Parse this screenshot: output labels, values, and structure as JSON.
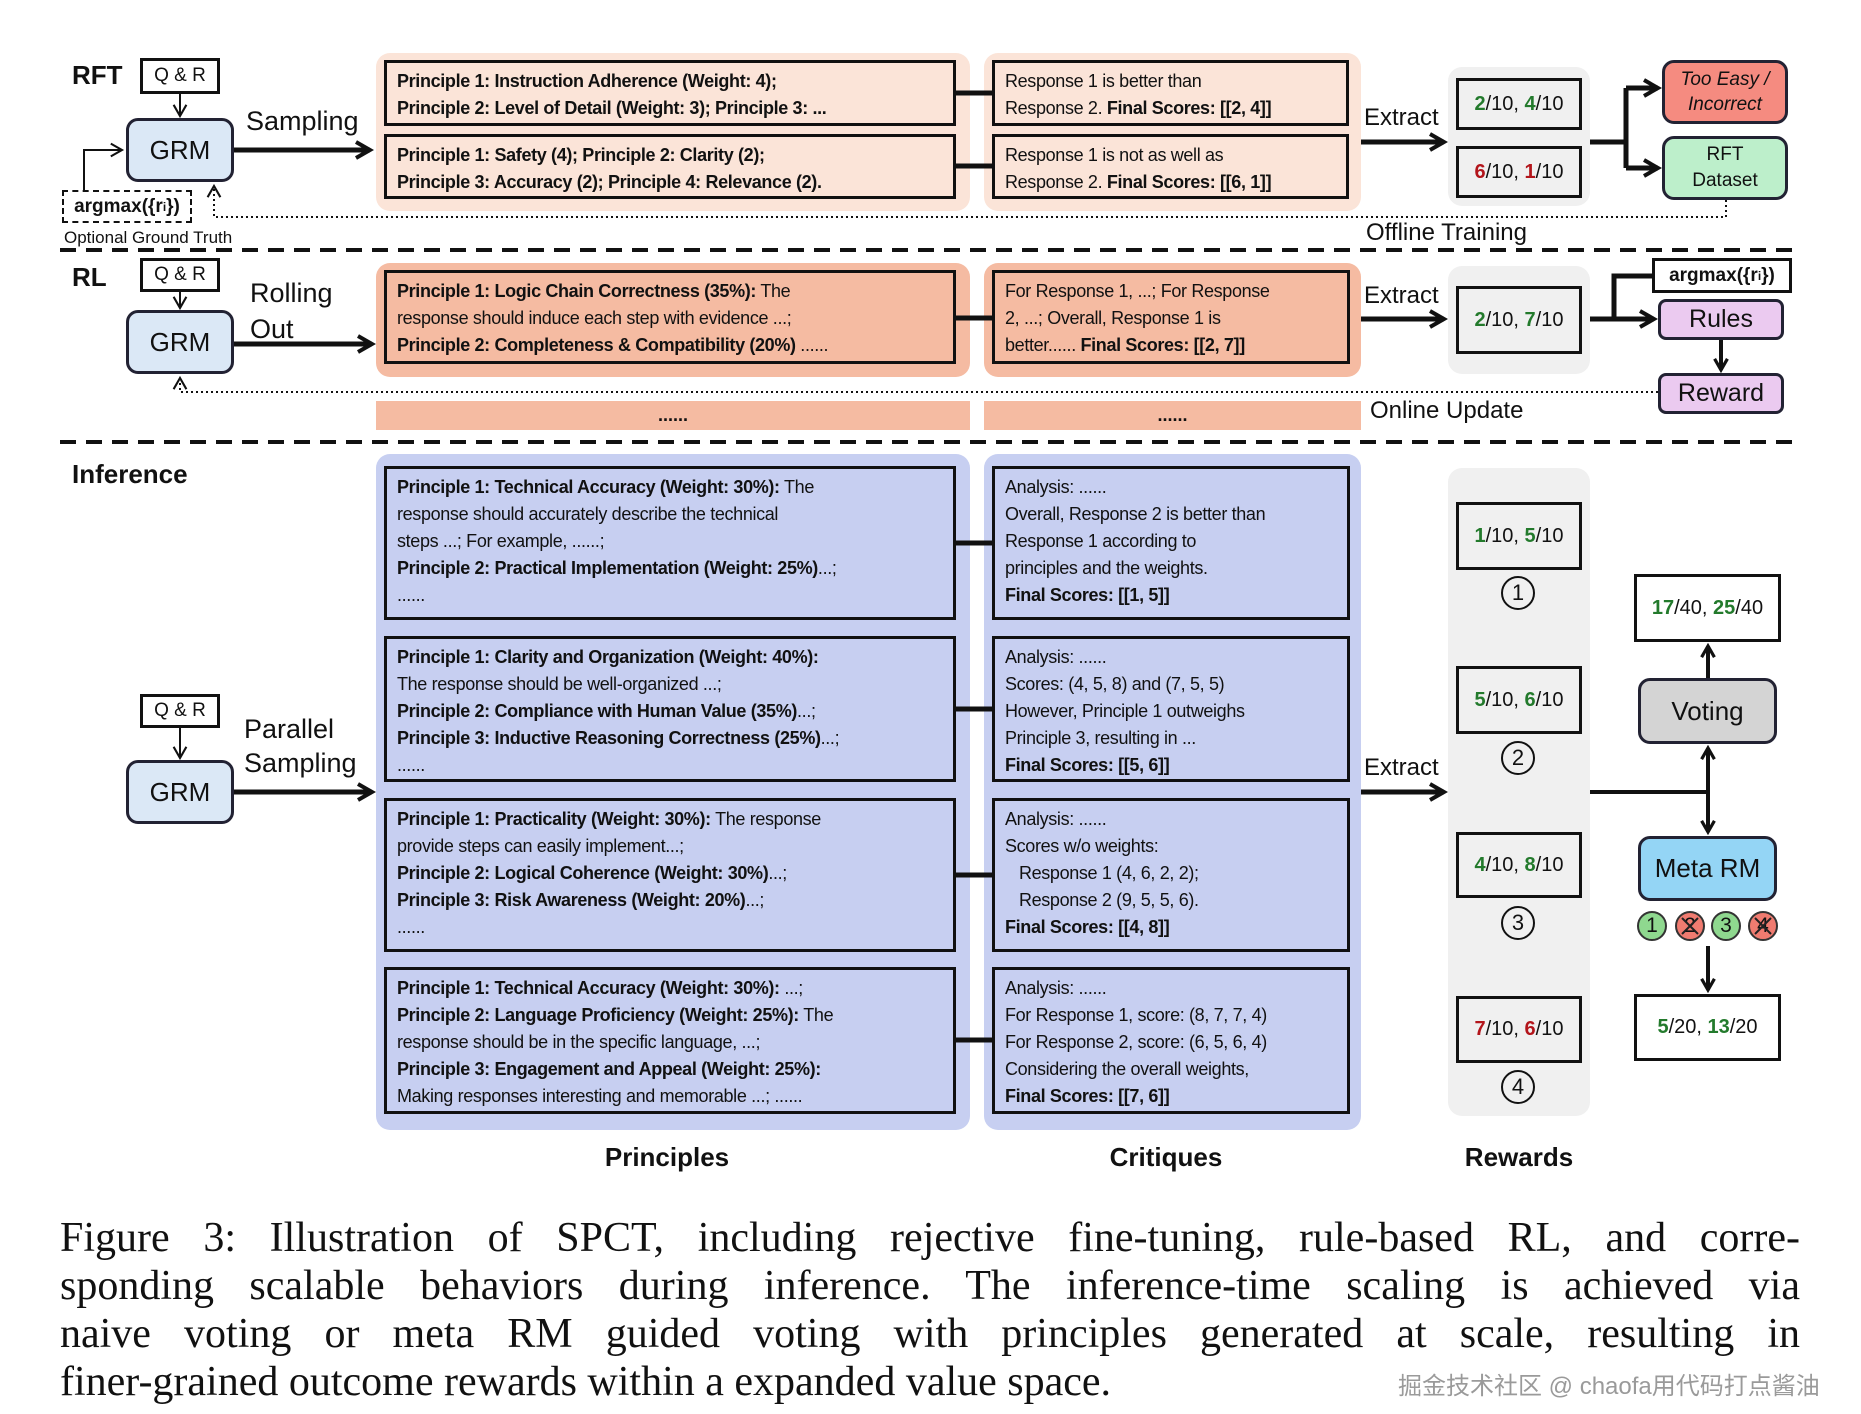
{
  "colors": {
    "green": "#237a2c",
    "red": "#b3151b",
    "rft_panel": "#fbe4d8",
    "rl_panel": "#f5bba2",
    "inf_panel": "#c7cff1",
    "grm": "#dbe8f6",
    "too_easy": "#f58b80",
    "rft_dataset": "#bdefcb",
    "rules": "#ebcaf0",
    "voting": "#d4d4d4",
    "meta_rm": "#94d5f5",
    "reward_panel": "#f0f0f0"
  },
  "rft": {
    "label": "RFT",
    "qr": "Q & R",
    "grm": "GRM",
    "sampling": "Sampling",
    "argmax_pre": "argmax({r",
    "argmax_sub": "i",
    "argmax_post": "})",
    "optional_gt": "Optional Ground Truth",
    "principles": [
      [
        [
          {
            "t": "Principle 1: Instruction Adherence (Weight: 4);",
            "b": true
          }
        ],
        [
          {
            "t": "Principle 2: Level of Detail (Weight: 3); Principle 3: ...",
            "b": true
          }
        ]
      ],
      [
        [
          {
            "t": "Principle 1: Safety (4); Principle 2: Clarity (2);",
            "b": true
          }
        ],
        [
          {
            "t": "Principle 3: Accuracy (2); Principle 4: Relevance (2).",
            "b": true
          }
        ]
      ]
    ],
    "critiques": [
      [
        [
          {
            "t": "Response 1 is better than"
          }
        ],
        [
          {
            "t": "Response 2. "
          },
          {
            "t": "Final Scores: [[2, 4]]",
            "b": true
          }
        ]
      ],
      [
        [
          {
            "t": "Response 1 is not as well as"
          }
        ],
        [
          {
            "t": "Response 2. "
          },
          {
            "t": "Final Scores: [[6, 1]]",
            "b": true
          }
        ]
      ]
    ],
    "extract": "Extract",
    "rewards": [
      [
        [
          {
            "t": "2",
            "b": true,
            "c": "green"
          },
          {
            "t": "/10, "
          },
          {
            "t": "4",
            "b": true,
            "c": "green"
          },
          {
            "t": "/10"
          }
        ]
      ],
      [
        [
          {
            "t": "6",
            "b": true,
            "c": "red"
          },
          {
            "t": "/10, "
          },
          {
            "t": "1",
            "b": true,
            "c": "red"
          },
          {
            "t": "/10"
          }
        ]
      ]
    ],
    "too_easy": [
      "Too Easy /",
      "Incorrect"
    ],
    "rft_dataset": [
      "RFT",
      "Dataset"
    ],
    "offline_training": "Offline Training"
  },
  "rl": {
    "label": "RL",
    "qr": "Q & R",
    "grm": "GRM",
    "rolling": [
      "Rolling",
      "Out"
    ],
    "principles": [
      [
        [
          {
            "t": "Principle 1: Logic Chain Correctness (35%):",
            "b": true
          },
          {
            "t": " The"
          }
        ],
        [
          {
            "t": "response should induce each step with evidence ...;"
          }
        ],
        [
          {
            "t": "Principle 2: Completeness & Compatibility (20%)",
            "b": true
          },
          {
            "t": " ......"
          }
        ]
      ]
    ],
    "critiques": [
      [
        [
          {
            "t": "For Response 1, ...; For Response"
          }
        ],
        [
          {
            "t": "2, ...; Overall, Response 1 is"
          }
        ],
        [
          {
            "t": "better...... "
          },
          {
            "t": "Final Scores: [[2, 7]]",
            "b": true
          }
        ]
      ]
    ],
    "extract": "Extract",
    "rewards": [
      [
        [
          {
            "t": "2",
            "b": true,
            "c": "green"
          },
          {
            "t": "/10, "
          },
          {
            "t": "7",
            "b": true,
            "c": "green"
          },
          {
            "t": "/10"
          }
        ]
      ]
    ],
    "argmax_pre": "argmax({r",
    "argmax_sub": "i",
    "argmax_post": "})",
    "rules": "Rules",
    "reward": "Reward",
    "online_update": "Online Update",
    "ellipsis_principles": "......",
    "ellipsis_critiques": "......"
  },
  "inference": {
    "label": "Inference",
    "qr": "Q & R",
    "grm": "GRM",
    "parallel": [
      "Parallel",
      "Sampling"
    ],
    "extract": "Extract",
    "principles": [
      [
        [
          {
            "t": "Principle 1: Technical Accuracy (Weight: 30%):",
            "b": true
          },
          {
            "t": " The"
          }
        ],
        [
          {
            "t": "response should accurately describe the technical"
          }
        ],
        [
          {
            "t": "steps ...; For example, ......;"
          }
        ],
        [
          {
            "t": "Principle 2: Practical Implementation (Weight: 25%)",
            "b": true
          },
          {
            "t": "...;"
          }
        ],
        [
          {
            "t": "......"
          }
        ]
      ],
      [
        [
          {
            "t": "Principle 1: Clarity and Organization (Weight: 40%):",
            "b": true
          }
        ],
        [
          {
            "t": "The response should be well-organized ...;"
          }
        ],
        [
          {
            "t": "Principle 2: Compliance with Human Value (35%)",
            "b": true
          },
          {
            "t": "...;"
          }
        ],
        [
          {
            "t": "Principle 3: Inductive Reasoning Correctness (25%)",
            "b": true
          },
          {
            "t": "...;"
          }
        ],
        [
          {
            "t": "......"
          }
        ]
      ],
      [
        [
          {
            "t": "Principle 1: Practicality (Weight: 30%):",
            "b": true
          },
          {
            "t": " The response"
          }
        ],
        [
          {
            "t": "provide steps can easily implement...;"
          }
        ],
        [
          {
            "t": "Principle 2: Logical Coherence (Weight: 30%)",
            "b": true
          },
          {
            "t": "...;"
          }
        ],
        [
          {
            "t": "Principle 3: Risk Awareness (Weight: 20%)",
            "b": true
          },
          {
            "t": "...;"
          }
        ],
        [
          {
            "t": "......"
          }
        ]
      ],
      [
        [
          {
            "t": "Principle 1: Technical Accuracy (Weight: 30%):",
            "b": true
          },
          {
            "t": " ...;"
          }
        ],
        [
          {
            "t": "Principle 2: Language Proficiency (Weight: 25%):",
            "b": true
          },
          {
            "t": " The"
          }
        ],
        [
          {
            "t": "response should be in the specific language, ...;"
          }
        ],
        [
          {
            "t": "Principle 3: Engagement and Appeal (Weight: 25%):",
            "b": true
          }
        ],
        [
          {
            "t": "Making responses interesting and memorable ...; ......"
          }
        ]
      ]
    ],
    "critiques": [
      [
        [
          {
            "t": "Analysis: ......"
          }
        ],
        [
          {
            "t": "Overall, Response 2 is better than"
          }
        ],
        [
          {
            "t": "Response 1 according to"
          }
        ],
        [
          {
            "t": "principles and the weights."
          }
        ],
        [
          {
            "t": "Final Scores: [[1, 5]]",
            "b": true
          }
        ]
      ],
      [
        [
          {
            "t": "Analysis: ......"
          }
        ],
        [
          {
            "t": "Scores: (4, 5, 8) and (7, 5, 5)"
          }
        ],
        [
          {
            "t": "However, Principle 1 outweighs"
          }
        ],
        [
          {
            "t": "Principle 3, resulting in ..."
          }
        ],
        [
          {
            "t": "Final Scores: [[5, 6]]",
            "b": true
          }
        ]
      ],
      [
        [
          {
            "t": "Analysis: ......"
          }
        ],
        [
          {
            "t": "Scores w/o weights:"
          }
        ],
        [
          {
            "t": "   Response 1 (4, 6, 2, 2);"
          }
        ],
        [
          {
            "t": "   Response 2 (9, 5, 5, 6)."
          }
        ],
        [
          {
            "t": "Final Scores: [[4, 8]]",
            "b": true
          }
        ]
      ],
      [
        [
          {
            "t": "Analysis: ......"
          }
        ],
        [
          {
            "t": "For Response 1, score: (8, 7, 7, 4)"
          }
        ],
        [
          {
            "t": "For Response 2, score: (6, 5, 6, 4)"
          }
        ],
        [
          {
            "t": "Considering the overall weights,"
          }
        ],
        [
          {
            "t": "Final Scores: [[7, 6]]",
            "b": true
          }
        ]
      ]
    ],
    "rewards": [
      [
        [
          {
            "t": "1",
            "b": true,
            "c": "green"
          },
          {
            "t": "/10, "
          },
          {
            "t": "5",
            "b": true,
            "c": "green"
          },
          {
            "t": "/10"
          }
        ]
      ],
      [
        [
          {
            "t": "5",
            "b": true,
            "c": "green"
          },
          {
            "t": "/10, "
          },
          {
            "t": "6",
            "b": true,
            "c": "green"
          },
          {
            "t": "/10"
          }
        ]
      ],
      [
        [
          {
            "t": "4",
            "b": true,
            "c": "green"
          },
          {
            "t": "/10, "
          },
          {
            "t": "8",
            "b": true,
            "c": "green"
          },
          {
            "t": "/10"
          }
        ]
      ],
      [
        [
          {
            "t": "7",
            "b": true,
            "c": "red"
          },
          {
            "t": "/10, "
          },
          {
            "t": "6",
            "b": true,
            "c": "red"
          },
          {
            "t": "/10"
          }
        ]
      ]
    ],
    "sample_numbers": [
      "1",
      "2",
      "3",
      "4"
    ],
    "voting": "Voting",
    "voting_result": [
      [
        {
          "t": "17",
          "b": true,
          "c": "green"
        },
        {
          "t": "/40, "
        },
        {
          "t": "25",
          "b": true,
          "c": "green"
        },
        {
          "t": "/40"
        }
      ]
    ],
    "meta_rm": "Meta RM",
    "meta_selection": [
      {
        "n": "1",
        "kept": true
      },
      {
        "n": "2",
        "kept": false
      },
      {
        "n": "3",
        "kept": true
      },
      {
        "n": "4",
        "kept": false
      }
    ],
    "meta_result": [
      [
        {
          "t": "5",
          "b": true,
          "c": "green"
        },
        {
          "t": "/20, "
        },
        {
          "t": "13",
          "b": true,
          "c": "green"
        },
        {
          "t": "/20"
        }
      ]
    ],
    "col_principles": "Principles",
    "col_critiques": "Critiques",
    "col_rewards": "Rewards"
  },
  "caption": [
    "Figure 3:  Illustration of SPCT, including rejective fine-tuning, rule-based RL, and corre-",
    "sponding scalable behaviors during inference. The inference-time scaling is achieved via",
    "naive voting or meta RM guided voting with principles generated at scale, resulting in",
    "finer-grained outcome rewards within a expanded value space."
  ],
  "watermark": "掘金技术社区 @ chaofa用代码打点酱油"
}
